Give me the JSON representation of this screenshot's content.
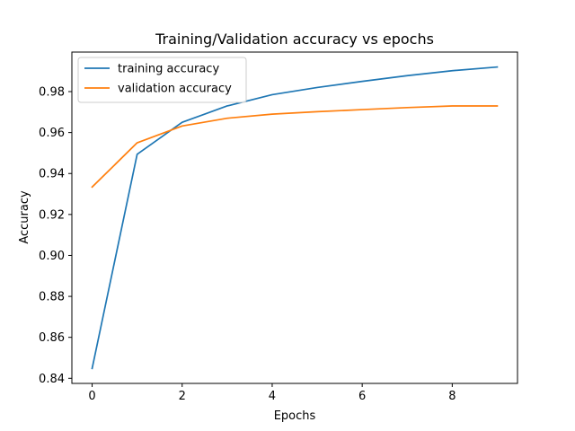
{
  "chart_data": {
    "type": "line",
    "title": "Training/Validation accuracy vs epochs",
    "xlabel": "Epochs",
    "ylabel": "Accuracy",
    "xlim": [
      -0.45,
      9.45
    ],
    "ylim": [
      0.8375,
      0.9993
    ],
    "xticks": [
      0,
      2,
      4,
      6,
      8
    ],
    "yticks": [
      0.84,
      0.86,
      0.88,
      0.9,
      0.92,
      0.94,
      0.96,
      0.98
    ],
    "ytick_labels": [
      "0.84",
      "0.86",
      "0.88",
      "0.90",
      "0.92",
      "0.94",
      "0.96",
      "0.98"
    ],
    "grid": false,
    "legend_position": "top-left",
    "x": [
      0,
      1,
      2,
      3,
      4,
      5,
      6,
      7,
      8,
      9
    ],
    "series": [
      {
        "name": "training accuracy",
        "color": "#1f77b4",
        "values": [
          0.8448,
          0.9494,
          0.965,
          0.973,
          0.9785,
          0.982,
          0.985,
          0.9878,
          0.9902,
          0.992
        ]
      },
      {
        "name": "validation accuracy",
        "color": "#ff7f0e",
        "values": [
          0.9334,
          0.955,
          0.9632,
          0.967,
          0.969,
          0.9702,
          0.9712,
          0.9722,
          0.973,
          0.973
        ]
      }
    ]
  }
}
